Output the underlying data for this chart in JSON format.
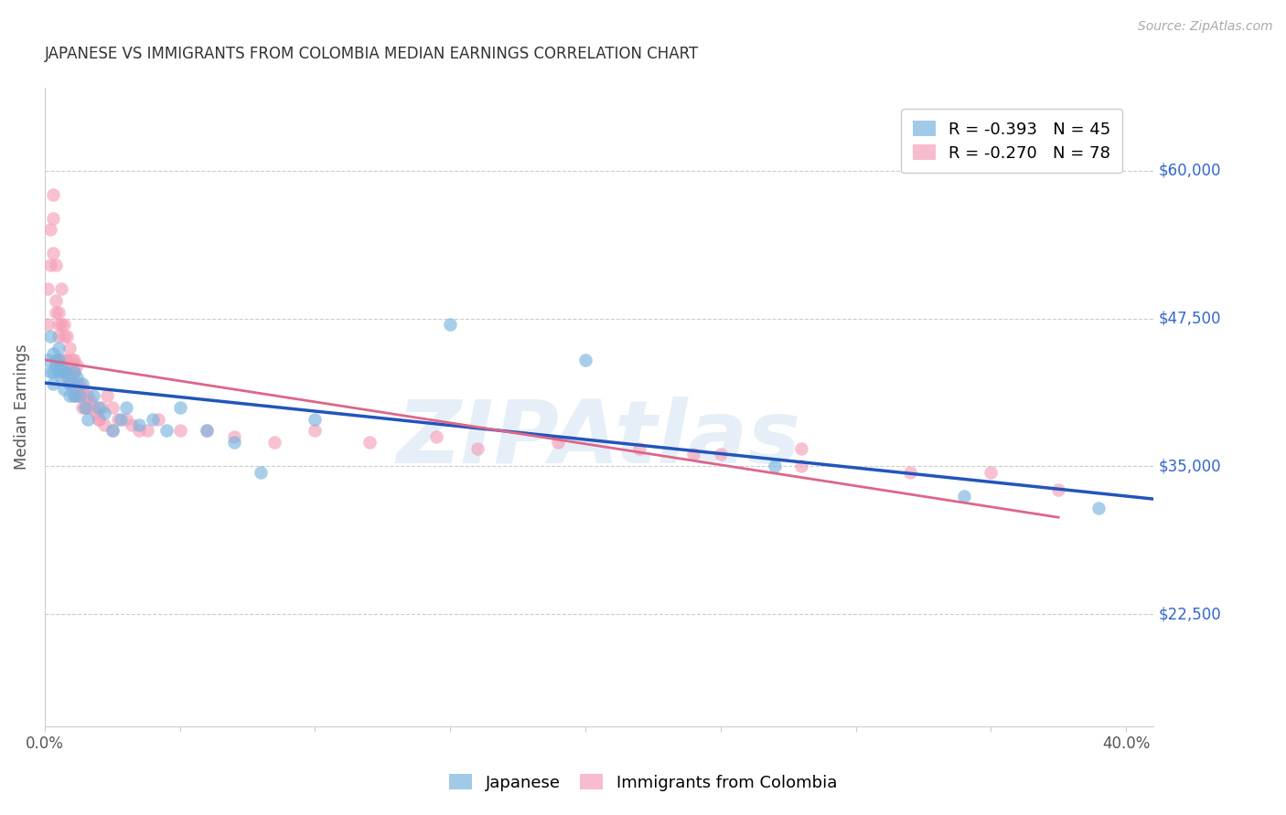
{
  "title": "JAPANESE VS IMMIGRANTS FROM COLOMBIA MEDIAN EARNINGS CORRELATION CHART",
  "source": "Source: ZipAtlas.com",
  "ylabel": "Median Earnings",
  "yticks": [
    22500,
    35000,
    47500,
    60000
  ],
  "ytick_labels": [
    "$22,500",
    "$35,000",
    "$47,500",
    "$60,000"
  ],
  "ylim": [
    13000,
    67000
  ],
  "xlim": [
    0.0,
    0.41
  ],
  "watermark": "ZIPAtlas",
  "legend_top": [
    {
      "label": "R = -0.393   N = 45",
      "color": "#7ab4e0"
    },
    {
      "label": "R = -0.270   N = 78",
      "color": "#f5a0b8"
    }
  ],
  "legend_bottom_labels": [
    "Japanese",
    "Immigrants from Colombia"
  ],
  "blue_color": "#7ab4e0",
  "pink_color": "#f5a0b8",
  "line_blue": "#2255bb",
  "line_pink": "#dd6688",
  "background": "#ffffff",
  "grid_color": "#cccccc",
  "title_color": "#333333",
  "ylabel_color": "#555555",
  "ytick_color": "#3366cc",
  "xtick_color": "#555555",
  "japanese_x": [
    0.001,
    0.002,
    0.002,
    0.003,
    0.003,
    0.003,
    0.004,
    0.004,
    0.005,
    0.005,
    0.005,
    0.006,
    0.006,
    0.007,
    0.007,
    0.008,
    0.009,
    0.009,
    0.01,
    0.011,
    0.011,
    0.012,
    0.013,
    0.014,
    0.015,
    0.016,
    0.018,
    0.02,
    0.022,
    0.025,
    0.028,
    0.03,
    0.035,
    0.04,
    0.045,
    0.05,
    0.06,
    0.07,
    0.08,
    0.1,
    0.15,
    0.2,
    0.27,
    0.34,
    0.39
  ],
  "japanese_y": [
    44000,
    46000,
    43000,
    44500,
    43000,
    42000,
    44000,
    43500,
    45000,
    44000,
    43000,
    43500,
    42500,
    43000,
    41500,
    43000,
    42000,
    41000,
    42000,
    43000,
    41000,
    42500,
    41000,
    42000,
    40000,
    39000,
    41000,
    40000,
    39500,
    38000,
    39000,
    40000,
    38500,
    39000,
    38000,
    40000,
    38000,
    37000,
    34500,
    39000,
    47000,
    44000,
    35000,
    32500,
    31500
  ],
  "colombia_x": [
    0.001,
    0.001,
    0.002,
    0.002,
    0.003,
    0.003,
    0.003,
    0.004,
    0.004,
    0.004,
    0.005,
    0.005,
    0.005,
    0.006,
    0.006,
    0.006,
    0.007,
    0.007,
    0.007,
    0.007,
    0.008,
    0.008,
    0.008,
    0.008,
    0.009,
    0.009,
    0.009,
    0.01,
    0.01,
    0.01,
    0.011,
    0.011,
    0.011,
    0.012,
    0.012,
    0.012,
    0.013,
    0.013,
    0.014,
    0.014,
    0.015,
    0.015,
    0.016,
    0.016,
    0.017,
    0.018,
    0.019,
    0.02,
    0.021,
    0.022,
    0.023,
    0.025,
    0.027,
    0.03,
    0.032,
    0.035,
    0.038,
    0.042,
    0.05,
    0.06,
    0.07,
    0.085,
    0.1,
    0.12,
    0.145,
    0.16,
    0.19,
    0.22,
    0.25,
    0.28,
    0.005,
    0.02,
    0.025,
    0.24,
    0.28,
    0.32,
    0.35,
    0.375
  ],
  "colombia_y": [
    50000,
    47000,
    55000,
    52000,
    58000,
    56000,
    53000,
    52000,
    49000,
    48000,
    48000,
    47000,
    46000,
    50000,
    47000,
    44000,
    47000,
    46000,
    44000,
    43000,
    46000,
    44000,
    43000,
    42500,
    45000,
    43000,
    42000,
    44000,
    43000,
    42000,
    44000,
    43000,
    41000,
    43500,
    42000,
    41000,
    42000,
    41000,
    41500,
    40000,
    41000,
    40000,
    41000,
    40000,
    40500,
    40000,
    39500,
    39000,
    40000,
    38500,
    41000,
    40000,
    39000,
    39000,
    38500,
    38000,
    38000,
    39000,
    38000,
    38000,
    37500,
    37000,
    38000,
    37000,
    37500,
    36500,
    37000,
    36500,
    36000,
    36500,
    44000,
    39000,
    38000,
    36000,
    35000,
    34500,
    34500,
    33000
  ]
}
